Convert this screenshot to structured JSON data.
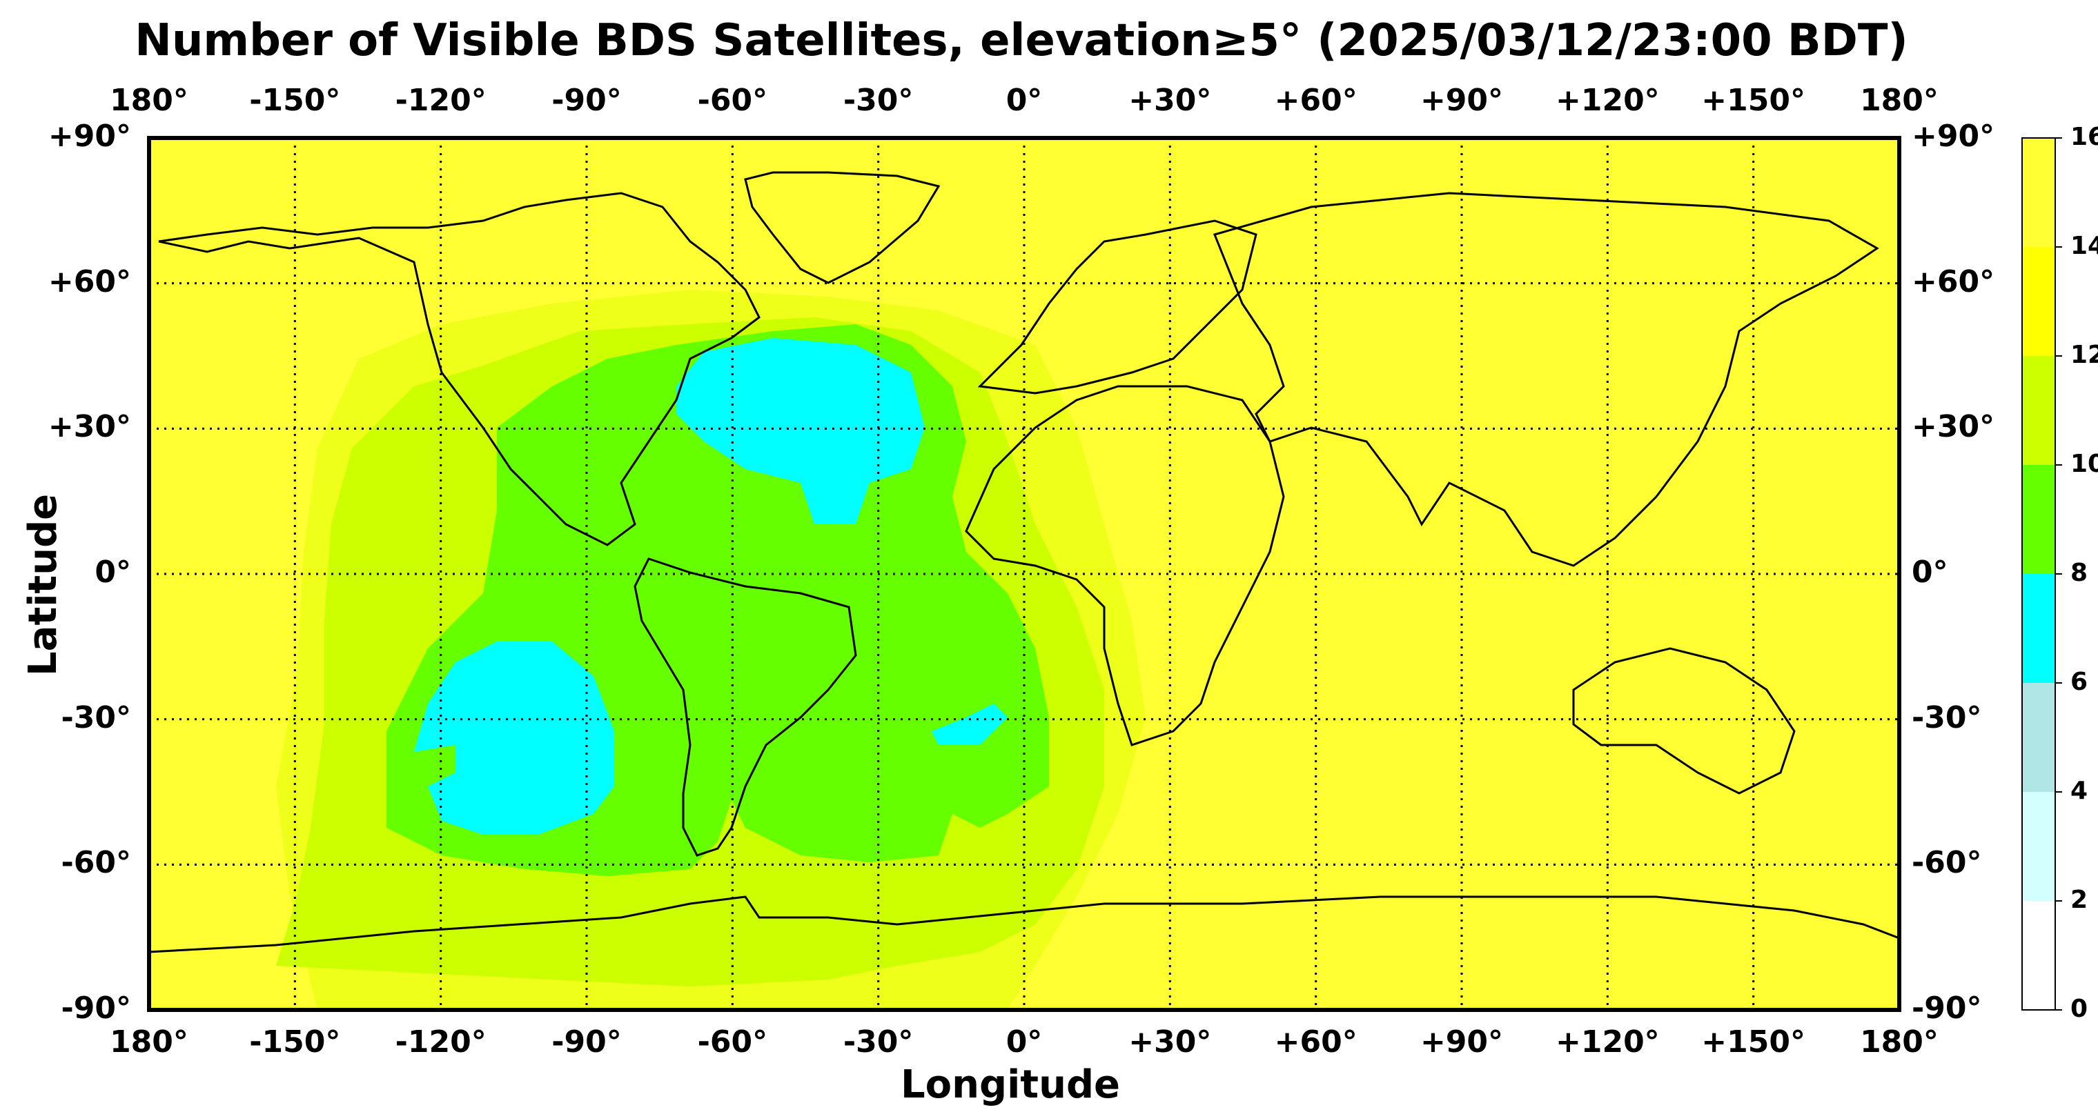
{
  "title": "Number of Visible BDS Satellites, elevation≥5° (2025/03/12/23:00 BDT)",
  "xlabel": "Longitude",
  "ylabel": "Latitude",
  "lon_ticks": [
    "180°",
    "-150°",
    "-120°",
    "-90°",
    "-60°",
    "-30°",
    "0°",
    "+30°",
    "+60°",
    "+90°",
    "+120°",
    "+150°",
    "180°"
  ],
  "lat_ticks": [
    "+90°",
    "+60°",
    "+30°",
    "0°",
    "-30°",
    "-60°",
    "-90°"
  ],
  "colorbar": {
    "ticks": [
      "0",
      "2",
      "4",
      "6",
      "8",
      "10",
      "12",
      "14",
      "16"
    ],
    "colors": [
      "#ffffff",
      "#d4ffff",
      "#b0e6e6",
      "#00ffff",
      "#66ff00",
      "#ccff00",
      "#ffff00",
      "#ffff33"
    ]
  },
  "chart_data": {
    "type": "heatmap",
    "title": "Number of Visible BDS Satellites, elevation≥5° (2025/03/12/23:00 BDT)",
    "xlabel": "Longitude",
    "ylabel": "Latitude",
    "xlim": [
      -180,
      180
    ],
    "ylim": [
      -90,
      90
    ],
    "value_range": [
      0,
      16
    ],
    "grid": true,
    "regions": [
      {
        "level": 15,
        "description_value": "background",
        "lon": [
          -180,
          180
        ],
        "lat": [
          -90,
          90
        ]
      },
      {
        "level": 13,
        "lon_range": [
          -140,
          25
        ],
        "lat_range": [
          -75,
          55
        ]
      },
      {
        "level": 11,
        "lon_range": [
          -130,
          15
        ],
        "lat_range": [
          -65,
          50
        ]
      },
      {
        "level": 9,
        "lon_range": [
          -115,
          5
        ],
        "lat_range": [
          -60,
          48
        ]
      },
      {
        "level": 7,
        "lon_range": [
          -67,
          -20
        ],
        "lat_range": [
          12,
          48
        ]
      },
      {
        "level": 7,
        "lon_range": [
          -125,
          -85
        ],
        "lat_range": [
          -55,
          -13
        ]
      },
      {
        "level": 7,
        "lon_range": [
          -18,
          -3
        ],
        "lat_range": [
          -37,
          -26
        ]
      }
    ]
  }
}
